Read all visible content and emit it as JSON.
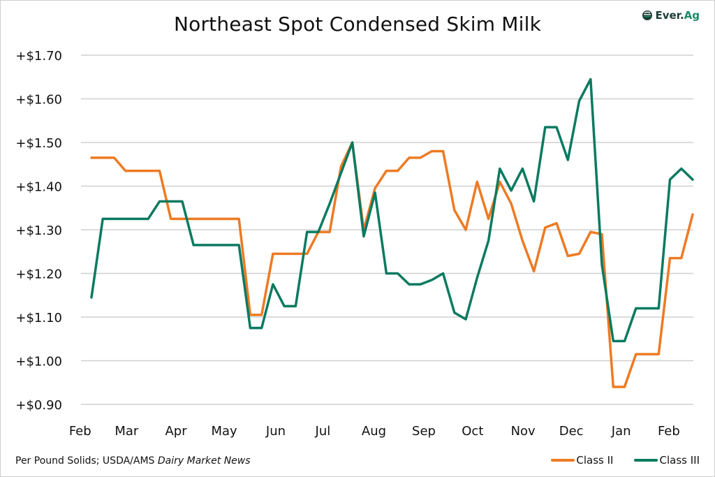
{
  "branding": {
    "logo_text_main": "Ever.",
    "logo_text_accent": "Ag",
    "logo_icon": "ever-ag-logo-icon"
  },
  "footer": {
    "source_prefix": "Per Pound Solids; USDA/AMS ",
    "source_italic": "Dairy Market News"
  },
  "colors": {
    "class_ii": "#ee7a22",
    "class_iii": "#0a7a60",
    "grid": "#d0d0d0"
  },
  "chart_data": {
    "type": "line",
    "title": "Northeast Spot Condensed Skim Milk",
    "xlabel": "",
    "ylabel": "",
    "ylim": [
      0.9,
      1.7
    ],
    "yticks": [
      0.9,
      1.0,
      1.1,
      1.2,
      1.3,
      1.4,
      1.5,
      1.6,
      1.7
    ],
    "ytick_labels": [
      "+$0.90",
      "+$1.00",
      "+$1.10",
      "+$1.20",
      "+$1.30",
      "+$1.40",
      "+$1.50",
      "+$1.60",
      "+$1.70"
    ],
    "grid": true,
    "legend_position": "bottom-right",
    "x_month_labels": [
      {
        "label": "Feb",
        "at": -1.0
      },
      {
        "label": "Mar",
        "at": 3.1
      },
      {
        "label": "Apr",
        "at": 7.45
      },
      {
        "label": "May",
        "at": 11.7
      },
      {
        "label": "Jun",
        "at": 16.25
      },
      {
        "label": "Jul",
        "at": 20.4
      },
      {
        "label": "Aug",
        "at": 24.9
      },
      {
        "label": "Sep",
        "at": 29.3
      },
      {
        "label": "Oct",
        "at": 33.6
      },
      {
        "label": "Nov",
        "at": 38.05
      },
      {
        "label": "Dec",
        "at": 42.3
      },
      {
        "label": "Jan",
        "at": 46.7
      },
      {
        "label": "Feb",
        "at": 50.9
      }
    ],
    "series": [
      {
        "name": "Class II",
        "color": "#ee7a22",
        "values": [
          1.465,
          1.465,
          1.465,
          1.435,
          1.435,
          1.435,
          1.435,
          1.325,
          1.325,
          1.325,
          1.325,
          1.325,
          1.325,
          1.325,
          1.105,
          1.105,
          1.245,
          1.245,
          1.245,
          1.245,
          1.295,
          1.295,
          1.445,
          1.5,
          1.3,
          1.395,
          1.435,
          1.435,
          1.465,
          1.465,
          1.48,
          1.48,
          1.345,
          1.3,
          1.41,
          1.325,
          1.41,
          1.36,
          1.275,
          1.205,
          1.305,
          1.315,
          1.24,
          1.245,
          1.295,
          1.29,
          0.94,
          0.94,
          1.015,
          1.015,
          1.015,
          1.235,
          1.235,
          1.335
        ]
      },
      {
        "name": "Class III",
        "color": "#0a7a60",
        "values": [
          1.145,
          1.325,
          1.325,
          1.325,
          1.325,
          1.325,
          1.365,
          1.365,
          1.365,
          1.265,
          1.265,
          1.265,
          1.265,
          1.265,
          1.075,
          1.075,
          1.175,
          1.125,
          1.125,
          1.295,
          1.295,
          1.36,
          1.43,
          1.5,
          1.285,
          1.385,
          1.2,
          1.2,
          1.175,
          1.175,
          1.185,
          1.2,
          1.11,
          1.095,
          1.19,
          1.275,
          1.44,
          1.39,
          1.44,
          1.365,
          1.535,
          1.535,
          1.46,
          1.595,
          1.645,
          1.22,
          1.045,
          1.045,
          1.12,
          1.12,
          1.12,
          1.415,
          1.44,
          1.415
        ]
      }
    ]
  }
}
